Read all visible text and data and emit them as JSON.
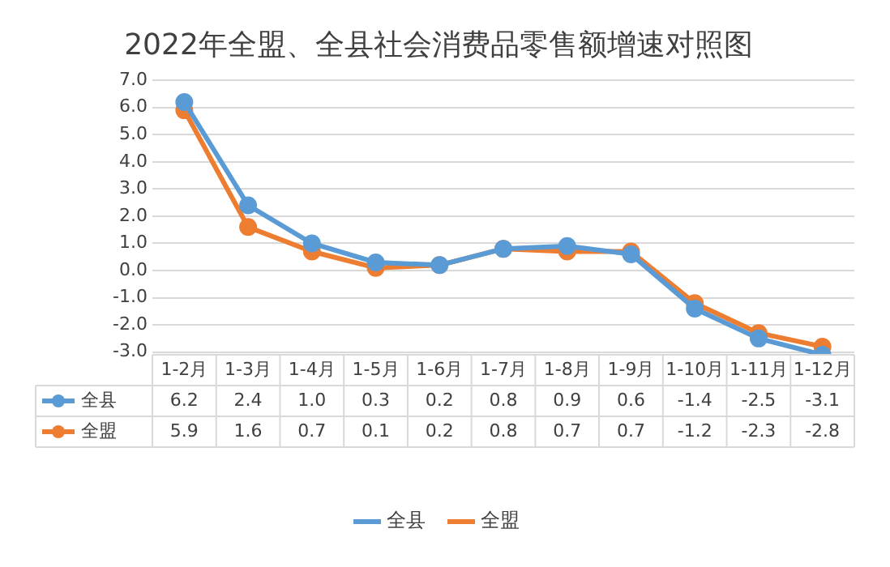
{
  "chart_data": {
    "type": "line",
    "title": "2022年全盟、全县社会消费品零售额增速对照图",
    "categories": [
      "1-2月",
      "1-3月",
      "1-4月",
      "1-5月",
      "1-6月",
      "1-7月",
      "1-8月",
      "1-9月",
      "1-10月",
      "1-11月",
      "1-12月"
    ],
    "series": [
      {
        "name": "全县",
        "color": "#5b9bd5",
        "values": [
          6.2,
          2.4,
          1.0,
          0.3,
          0.2,
          0.8,
          0.9,
          0.6,
          -1.4,
          -2.5,
          -3.1
        ],
        "value_labels": [
          "6.2",
          "2.4",
          "1.0",
          "0.3",
          "0.2",
          "0.8",
          "0.9",
          "0.6",
          "-1.4",
          "-2.5",
          "-3.1"
        ]
      },
      {
        "name": "全盟",
        "color": "#ed7d31",
        "values": [
          5.9,
          1.6,
          0.7,
          0.1,
          0.2,
          0.8,
          0.7,
          0.7,
          -1.2,
          -2.3,
          -2.8
        ],
        "value_labels": [
          "5.9",
          "1.6",
          "0.7",
          "0.1",
          "0.2",
          "0.8",
          "0.7",
          "0.7",
          "-1.2",
          "-2.3",
          "-2.8"
        ]
      }
    ],
    "ylim": [
      -3.1,
      7
    ],
    "yticks": [
      {
        "value": -3,
        "label": "-3.0"
      },
      {
        "value": -2,
        "label": "-2.0"
      },
      {
        "value": -1,
        "label": "-1.0"
      },
      {
        "value": 0,
        "label": "0.0"
      },
      {
        "value": 1,
        "label": "1.0"
      },
      {
        "value": 2,
        "label": "2.0"
      },
      {
        "value": 3,
        "label": "3.0"
      },
      {
        "value": 4,
        "label": "4.0"
      },
      {
        "value": 5,
        "label": "5.0"
      },
      {
        "value": 6,
        "label": "6.0"
      },
      {
        "value": 7,
        "label": "7.0"
      }
    ],
    "grid": "y",
    "legend": "bottom",
    "marker": "circle",
    "line_style": "solid"
  }
}
